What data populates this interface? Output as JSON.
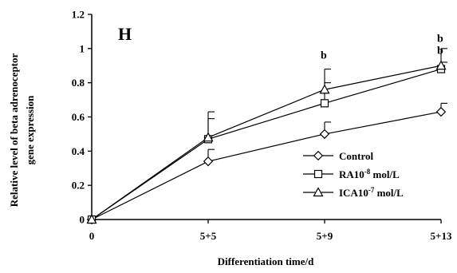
{
  "chart_data": {
    "type": "line",
    "panel_label": "H",
    "xlabel": "Differentiation time/d",
    "ylabel_line1": "Relative level of beta adrenoceptor",
    "ylabel_line2": "gene expression",
    "categories": [
      "0",
      "5+5",
      "5+9",
      "5+13"
    ],
    "ylim": [
      0,
      1.2
    ],
    "yticks": [
      0,
      0.2,
      0.4,
      0.6,
      0.8,
      1,
      1.2
    ],
    "ytick_labels": [
      "0",
      "0.2",
      "0.4",
      "0.6",
      "0.8",
      "1",
      "1.2"
    ],
    "grid": false,
    "legend_position": "bottom-right",
    "series": [
      {
        "name": "Control",
        "legend_main": "Control",
        "legend_sup": "",
        "legend_tail": "",
        "marker": "diamond",
        "values": [
          0,
          0.34,
          0.5,
          0.63
        ],
        "errors": [
          0,
          0.07,
          0.07,
          0.05
        ]
      },
      {
        "name": "RA10-8 mol/L",
        "legend_main": "RA10",
        "legend_sup": "-8",
        "legend_tail": " mol/L",
        "marker": "square",
        "values": [
          0,
          0.47,
          0.68,
          0.88
        ],
        "errors": [
          0,
          0.12,
          0.12,
          0.04
        ]
      },
      {
        "name": "ICA10-7 mol/L",
        "legend_main": "ICA10",
        "legend_sup": "-7",
        "legend_tail": " mol/L",
        "marker": "triangle",
        "values": [
          0,
          0.48,
          0.76,
          0.9
        ],
        "errors": [
          0,
          0.15,
          0.12,
          0.1
        ]
      }
    ],
    "annotations": [
      {
        "text": "b",
        "category_index": 2,
        "y": 0.94
      },
      {
        "text": "b",
        "category_index": 3,
        "y": 1.04
      },
      {
        "text": "b",
        "category_index": 3,
        "y": 0.97
      }
    ]
  }
}
